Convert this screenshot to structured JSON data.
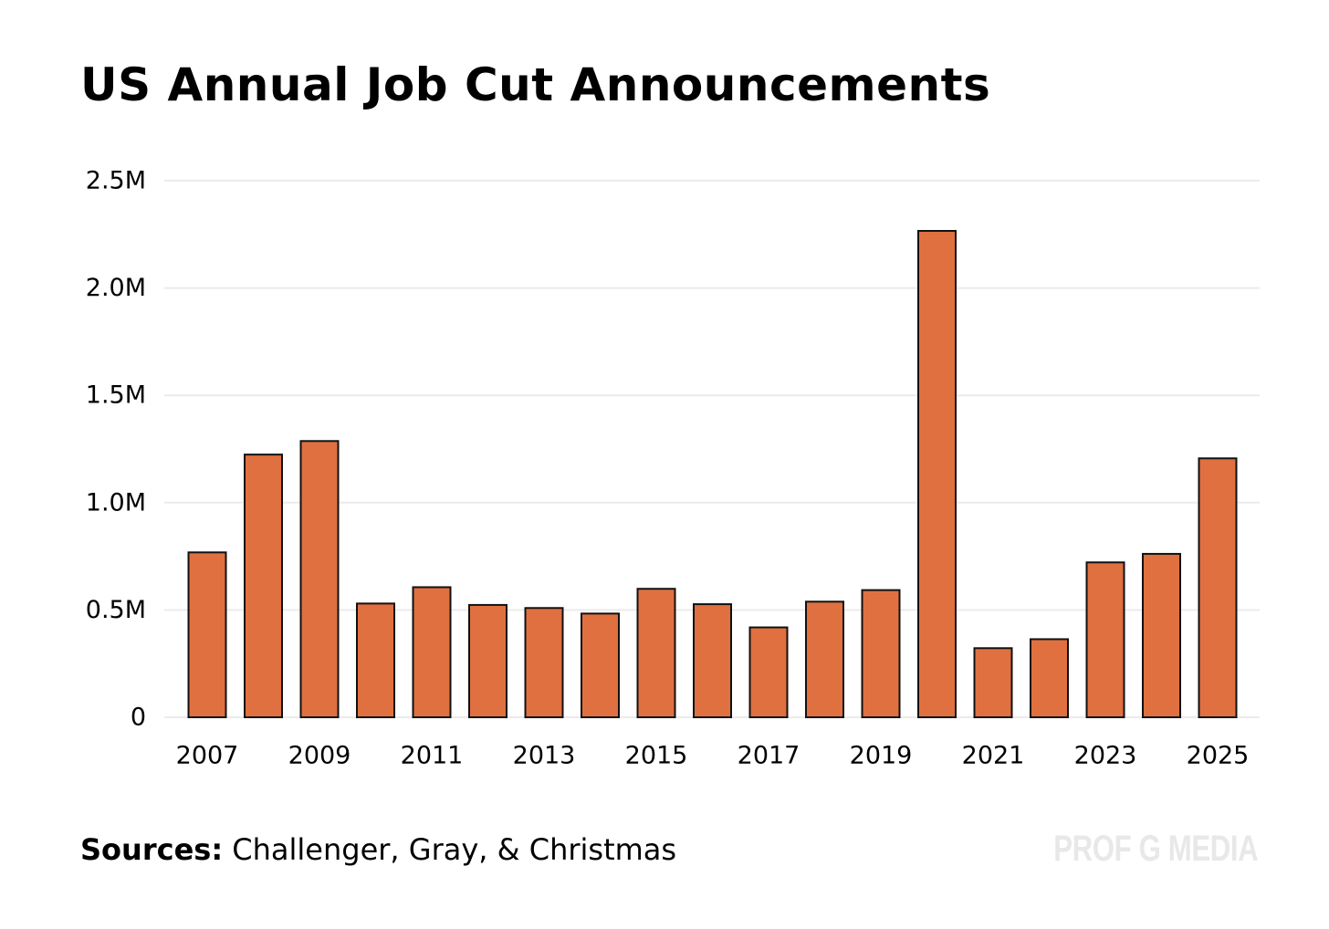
{
  "source": {
    "label": "Sources:",
    "text": "Challenger, Gray, & Christmas"
  },
  "watermark": "PROF G MEDIA",
  "colors": {
    "bar": "#e07040",
    "bar_outline": "#111111",
    "grid": "#ebebeb",
    "watermark": "#e8e8e8"
  },
  "chart_data": {
    "type": "bar",
    "title": "US Annual Job Cut Announcements",
    "xlabel": "",
    "ylabel": "",
    "categories": [
      "2007",
      "2008",
      "2009",
      "2010",
      "2011",
      "2012",
      "2013",
      "2014",
      "2015",
      "2016",
      "2017",
      "2018",
      "2019",
      "2020",
      "2021",
      "2022",
      "2023",
      "2024",
      "2025"
    ],
    "x_tick_labels": [
      "2007",
      "2009",
      "2011",
      "2013",
      "2015",
      "2017",
      "2019",
      "2021",
      "2023",
      "2025"
    ],
    "values": [
      768264,
      1223993,
      1287030,
      529973,
      606082,
      523362,
      509051,
      483171,
      598510,
      526915,
      418770,
      538659,
      592556,
      2266100,
      321970,
      363832,
      721677,
      761358,
      1206374
    ],
    "ylim": [
      0,
      2500000
    ],
    "yticks": [
      {
        "value": 0,
        "label": "0"
      },
      {
        "value": 500000,
        "label": "0.5M"
      },
      {
        "value": 1000000,
        "label": "1.0M"
      },
      {
        "value": 1500000,
        "label": "1.5M"
      },
      {
        "value": 2000000,
        "label": "2.0M"
      },
      {
        "value": 2500000,
        "label": "2.5M"
      }
    ],
    "grid": true,
    "legend": "none"
  }
}
